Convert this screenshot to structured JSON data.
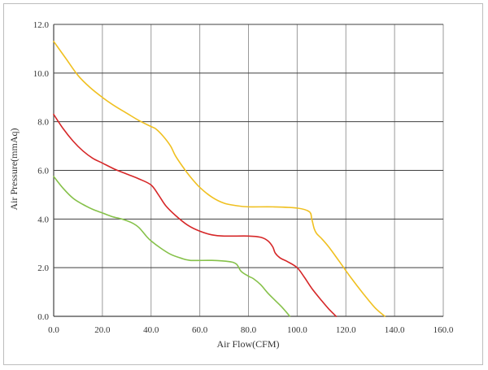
{
  "chart_data": {
    "type": "line",
    "xlabel": "Air Flow(CFM)",
    "ylabel": "Air Pressure(mmAq)",
    "xlim": [
      0,
      160
    ],
    "ylim": [
      0,
      12
    ],
    "x_ticks": [
      "0.0",
      "20.0",
      "40.0",
      "60.0",
      "80.0",
      "100.0",
      "120.0",
      "140.0",
      "160.0"
    ],
    "y_ticks": [
      "0.0",
      "2.0",
      "4.0",
      "6.0",
      "8.0",
      "10.0",
      "12.0"
    ],
    "grid": true,
    "series": [
      {
        "color": "#f0c020",
        "points": [
          [
            0,
            11.3
          ],
          [
            5,
            10.6
          ],
          [
            10,
            9.9
          ],
          [
            15,
            9.4
          ],
          [
            20,
            9.0
          ],
          [
            25,
            8.65
          ],
          [
            30,
            8.35
          ],
          [
            35,
            8.05
          ],
          [
            40,
            7.8
          ],
          [
            42,
            7.7
          ],
          [
            45,
            7.4
          ],
          [
            48,
            7.0
          ],
          [
            50,
            6.6
          ],
          [
            53,
            6.15
          ],
          [
            56,
            5.75
          ],
          [
            60,
            5.3
          ],
          [
            65,
            4.9
          ],
          [
            70,
            4.65
          ],
          [
            75,
            4.55
          ],
          [
            80,
            4.5
          ],
          [
            90,
            4.5
          ],
          [
            100,
            4.45
          ],
          [
            105,
            4.3
          ],
          [
            106,
            4.0
          ],
          [
            107,
            3.6
          ],
          [
            108,
            3.4
          ],
          [
            110,
            3.2
          ],
          [
            113,
            2.85
          ],
          [
            117,
            2.3
          ],
          [
            122,
            1.6
          ],
          [
            127,
            0.95
          ],
          [
            132,
            0.35
          ],
          [
            136,
            0.0
          ]
        ]
      },
      {
        "color": "#d62728",
        "points": [
          [
            0,
            8.3
          ],
          [
            4,
            7.7
          ],
          [
            8,
            7.2
          ],
          [
            12,
            6.8
          ],
          [
            16,
            6.5
          ],
          [
            20,
            6.3
          ],
          [
            25,
            6.05
          ],
          [
            30,
            5.85
          ],
          [
            35,
            5.65
          ],
          [
            40,
            5.4
          ],
          [
            43,
            5.0
          ],
          [
            46,
            4.55
          ],
          [
            50,
            4.15
          ],
          [
            55,
            3.75
          ],
          [
            60,
            3.5
          ],
          [
            65,
            3.35
          ],
          [
            70,
            3.3
          ],
          [
            80,
            3.3
          ],
          [
            85,
            3.25
          ],
          [
            88,
            3.1
          ],
          [
            90,
            2.85
          ],
          [
            91,
            2.6
          ],
          [
            93,
            2.4
          ],
          [
            96,
            2.25
          ],
          [
            100,
            2.0
          ],
          [
            103,
            1.6
          ],
          [
            106,
            1.15
          ],
          [
            110,
            0.65
          ],
          [
            113,
            0.3
          ],
          [
            116,
            0.0
          ]
        ]
      },
      {
        "color": "#86c14a",
        "points": [
          [
            0,
            5.75
          ],
          [
            4,
            5.25
          ],
          [
            8,
            4.85
          ],
          [
            12,
            4.6
          ],
          [
            16,
            4.4
          ],
          [
            20,
            4.25
          ],
          [
            24,
            4.1
          ],
          [
            28,
            4.0
          ],
          [
            32,
            3.85
          ],
          [
            35,
            3.65
          ],
          [
            38,
            3.3
          ],
          [
            40,
            3.1
          ],
          [
            44,
            2.8
          ],
          [
            48,
            2.55
          ],
          [
            52,
            2.4
          ],
          [
            56,
            2.3
          ],
          [
            65,
            2.3
          ],
          [
            72,
            2.25
          ],
          [
            75,
            2.15
          ],
          [
            77,
            1.85
          ],
          [
            80,
            1.65
          ],
          [
            82,
            1.55
          ],
          [
            85,
            1.3
          ],
          [
            88,
            0.95
          ],
          [
            91,
            0.65
          ],
          [
            94,
            0.35
          ],
          [
            97,
            0.0
          ]
        ]
      }
    ]
  }
}
